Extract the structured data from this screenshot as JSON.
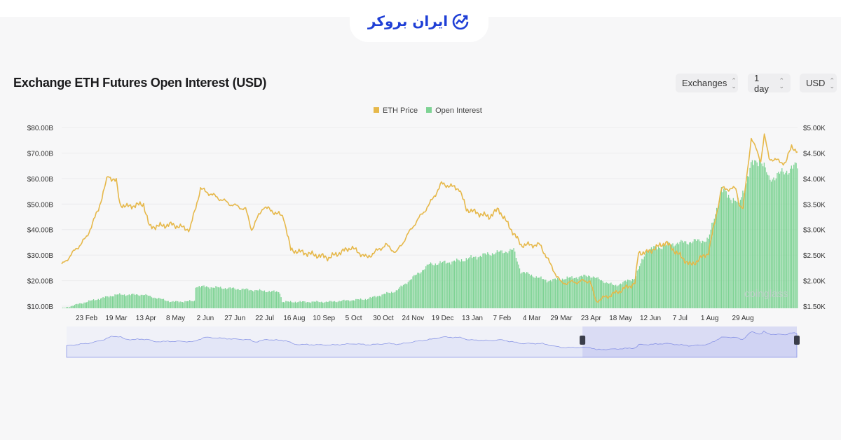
{
  "logo": {
    "text": "ایران بروکر",
    "icon": "chart-trend-circle-icon"
  },
  "header": {
    "title": "Exchange ETH Futures Open Interest (USD)"
  },
  "controls": [
    {
      "label": "Exchanges",
      "icon": "updown-chevron-icon"
    },
    {
      "label": "1 day",
      "icon": "updown-chevron-icon"
    },
    {
      "label": "USD",
      "icon": "updown-chevron-icon"
    }
  ],
  "watermark": "coinglass",
  "colors": {
    "price": "#e6b84a",
    "oi": "#7ed394",
    "navigator": "#8b97e6",
    "logo": "#1f3fd6"
  },
  "chart_data": {
    "type": "bar+line",
    "title": "Exchange ETH Futures Open Interest (USD)",
    "legend": [
      "ETH Price",
      "Open Interest"
    ],
    "legend_position": "top-center",
    "x_unit": "days since start of range",
    "x_range": [
      0,
      620
    ],
    "x_ticks": [
      {
        "label": "23 Feb",
        "day": 21
      },
      {
        "label": "19 Mar",
        "day": 46
      },
      {
        "label": "13 Apr",
        "day": 71
      },
      {
        "label": "8 May",
        "day": 96
      },
      {
        "label": "2 Jun",
        "day": 121
      },
      {
        "label": "27 Jun",
        "day": 146
      },
      {
        "label": "22 Jul",
        "day": 171
      },
      {
        "label": "16 Aug",
        "day": 196
      },
      {
        "label": "10 Sep",
        "day": 221
      },
      {
        "label": "5 Oct",
        "day": 246
      },
      {
        "label": "30 Oct",
        "day": 271
      },
      {
        "label": "24 Nov",
        "day": 296
      },
      {
        "label": "19 Dec",
        "day": 321
      },
      {
        "label": "13 Jan",
        "day": 346
      },
      {
        "label": "7 Feb",
        "day": 371
      },
      {
        "label": "4 Mar",
        "day": 396
      },
      {
        "label": "29 Mar",
        "day": 421
      },
      {
        "label": "23 Apr",
        "day": 446
      },
      {
        "label": "18 May",
        "day": 471
      },
      {
        "label": "12 Jun",
        "day": 496
      },
      {
        "label": "7 Jul",
        "day": 521
      },
      {
        "label": "1 Aug",
        "day": 546
      },
      {
        "label": "29 Aug",
        "day": 574
      }
    ],
    "left_axis": {
      "label": "Open Interest",
      "range": [
        10,
        80
      ],
      "unit": "B USD",
      "ticks": [
        "$10.00B",
        "$20.00B",
        "$30.00B",
        "$40.00B",
        "$50.00B",
        "$60.00B",
        "$70.00B",
        "$80.00B"
      ]
    },
    "right_axis": {
      "label": "ETH Price",
      "range": [
        1.5,
        5.0
      ],
      "unit": "K USD",
      "ticks": [
        "$1.50K",
        "$2.00K",
        "$2.50K",
        "$3.00K",
        "$3.50K",
        "$4.00K",
        "$4.50K",
        "$5.00K"
      ]
    },
    "grid": true,
    "series": [
      {
        "name": "ETH Price",
        "type": "line",
        "axis": "right",
        "points": [
          [
            0,
            2.3
          ],
          [
            21,
            2.85
          ],
          [
            31,
            3.4
          ],
          [
            39,
            4.05
          ],
          [
            46,
            3.95
          ],
          [
            49,
            3.5
          ],
          [
            55,
            3.45
          ],
          [
            69,
            3.5
          ],
          [
            74,
            3.05
          ],
          [
            93,
            3.1
          ],
          [
            108,
            3.0
          ],
          [
            117,
            3.8
          ],
          [
            142,
            3.5
          ],
          [
            155,
            3.4
          ],
          [
            160,
            3.0
          ],
          [
            170,
            3.45
          ],
          [
            187,
            3.25
          ],
          [
            193,
            2.6
          ],
          [
            225,
            2.45
          ],
          [
            244,
            2.65
          ],
          [
            257,
            2.45
          ],
          [
            273,
            2.7
          ],
          [
            282,
            2.55
          ],
          [
            297,
            3.1
          ],
          [
            310,
            3.5
          ],
          [
            320,
            3.9
          ],
          [
            335,
            3.8
          ],
          [
            341,
            3.4
          ],
          [
            360,
            3.25
          ],
          [
            368,
            3.4
          ],
          [
            387,
            2.7
          ],
          [
            403,
            2.7
          ],
          [
            409,
            2.45
          ],
          [
            412,
            2.3
          ],
          [
            421,
            1.95
          ],
          [
            445,
            2.0
          ],
          [
            450,
            1.6
          ],
          [
            466,
            1.75
          ],
          [
            483,
            1.95
          ],
          [
            486,
            2.55
          ],
          [
            493,
            2.55
          ],
          [
            509,
            2.75
          ],
          [
            518,
            2.55
          ],
          [
            530,
            2.3
          ],
          [
            545,
            2.55
          ],
          [
            556,
            3.8
          ],
          [
            568,
            3.8
          ],
          [
            571,
            3.5
          ],
          [
            574,
            3.4
          ],
          [
            581,
            4.8
          ],
          [
            589,
            4.35
          ],
          [
            592,
            4.85
          ],
          [
            596,
            4.4
          ],
          [
            610,
            4.3
          ],
          [
            615,
            4.65
          ],
          [
            620,
            4.5
          ]
        ]
      },
      {
        "name": "Open Interest",
        "type": "bar",
        "axis": "left",
        "points": [
          [
            0,
            9
          ],
          [
            21,
            11.7
          ],
          [
            46,
            14.5
          ],
          [
            69,
            14.5
          ],
          [
            93,
            11.7
          ],
          [
            112,
            12
          ],
          [
            113,
            17.8
          ],
          [
            142,
            17
          ],
          [
            170,
            16
          ],
          [
            184,
            15.5
          ],
          [
            186,
            11.7
          ],
          [
            225,
            11.7
          ],
          [
            257,
            12.8
          ],
          [
            282,
            16
          ],
          [
            310,
            26.4
          ],
          [
            335,
            27.8
          ],
          [
            360,
            30.5
          ],
          [
            381,
            32
          ],
          [
            387,
            23.6
          ],
          [
            409,
            20
          ],
          [
            445,
            22
          ],
          [
            466,
            18
          ],
          [
            483,
            21
          ],
          [
            493,
            32
          ],
          [
            518,
            34.7
          ],
          [
            545,
            36
          ],
          [
            556,
            55.5
          ],
          [
            571,
            50
          ],
          [
            581,
            65
          ],
          [
            589,
            68
          ],
          [
            596,
            59.7
          ],
          [
            615,
            64
          ],
          [
            620,
            65
          ]
        ]
      }
    ],
    "navigator_selection_days": [
      438,
      620
    ]
  }
}
